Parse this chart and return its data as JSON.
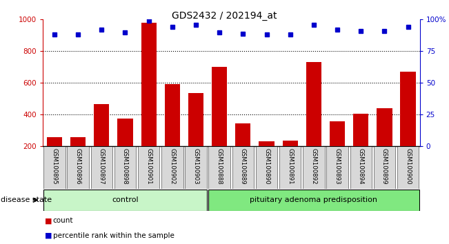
{
  "title": "GDS2432 / 202194_at",
  "samples": [
    "GSM100895",
    "GSM100896",
    "GSM100897",
    "GSM100898",
    "GSM100901",
    "GSM100902",
    "GSM100903",
    "GSM100888",
    "GSM100889",
    "GSM100890",
    "GSM100891",
    "GSM100892",
    "GSM100893",
    "GSM100894",
    "GSM100899",
    "GSM100900"
  ],
  "counts": [
    260,
    260,
    465,
    375,
    980,
    595,
    535,
    700,
    345,
    230,
    235,
    730,
    360,
    405,
    440,
    670
  ],
  "percentiles": [
    88,
    88,
    92,
    90,
    99,
    94,
    96,
    90,
    89,
    88,
    88,
    96,
    92,
    91,
    91,
    94
  ],
  "groups": [
    {
      "label": "control",
      "start": 0,
      "end": 7,
      "color": "#c8f5c8"
    },
    {
      "label": "pituitary adenoma predisposition",
      "start": 7,
      "end": 16,
      "color": "#80e880"
    }
  ],
  "ylim_left": [
    200,
    1000
  ],
  "ylim_right": [
    0,
    100
  ],
  "yticks_left": [
    200,
    400,
    600,
    800,
    1000
  ],
  "yticks_right": [
    0,
    25,
    50,
    75,
    100
  ],
  "yticklabels_right": [
    "0",
    "25",
    "50",
    "75",
    "100%"
  ],
  "bar_color": "#cc0000",
  "dot_color": "#0000cc",
  "bg_color": "#d8d8d8",
  "legend_count_label": "count",
  "legend_pct_label": "percentile rank within the sample",
  "disease_state_label": "disease state",
  "left_yaxis_color": "#cc0000",
  "right_yaxis_color": "#0000cc",
  "dotted_lines": [
    400,
    600,
    800
  ],
  "fig_width": 6.51,
  "fig_height": 3.54,
  "dpi": 100
}
